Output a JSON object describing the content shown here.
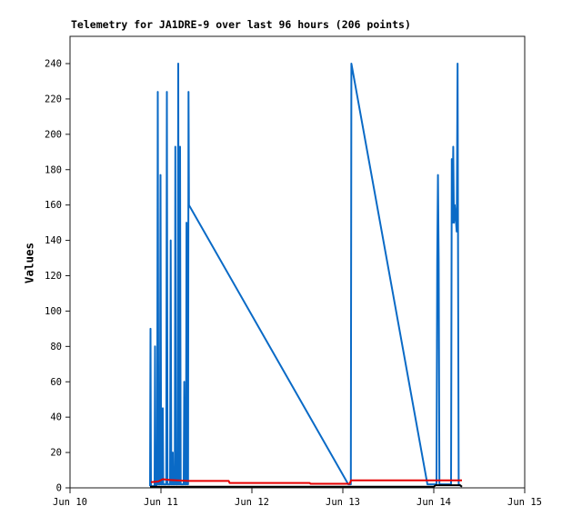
{
  "page": {
    "background": "#ffffff"
  },
  "chart_data": {
    "type": "line",
    "title": "Telemetry for JA1DRE-9 over last 96 hours (206 points)",
    "ylabel": "Values",
    "xlabel": "",
    "grid": false,
    "legend": false,
    "x_axis": {
      "unit": "days-since-Jun-10",
      "range": [
        0,
        5
      ],
      "ticks": [
        {
          "pos": 0,
          "label": "Jun 10"
        },
        {
          "pos": 1,
          "label": "Jun 11"
        },
        {
          "pos": 2,
          "label": "Jun 12"
        },
        {
          "pos": 3,
          "label": "Jun 13"
        },
        {
          "pos": 4,
          "label": "Jun 14"
        },
        {
          "pos": 5,
          "label": "Jun 15"
        }
      ]
    },
    "y_axis": {
      "min": 0,
      "max": 240,
      "step": 20,
      "top_padding_value": 255
    },
    "colors": {
      "axis": "#1a1a1a",
      "blue_series": "#0A6AC6",
      "red_series": "#E60000",
      "black_series": "#000000"
    },
    "series": [
      {
        "name": "telemetry-channel-blue",
        "color": "#0A6AC6",
        "stroke_width": 2,
        "points": [
          [
            0.88,
            1
          ],
          [
            0.885,
            90
          ],
          [
            0.89,
            1
          ],
          [
            0.93,
            1
          ],
          [
            0.935,
            80
          ],
          [
            0.94,
            1
          ],
          [
            0.958,
            2
          ],
          [
            0.965,
            224
          ],
          [
            0.972,
            2
          ],
          [
            0.988,
            2
          ],
          [
            0.995,
            177
          ],
          [
            1.002,
            2
          ],
          [
            1.015,
            2
          ],
          [
            1.02,
            45
          ],
          [
            1.025,
            2
          ],
          [
            1.058,
            2
          ],
          [
            1.065,
            224
          ],
          [
            1.072,
            2
          ],
          [
            1.1,
            2
          ],
          [
            1.107,
            140
          ],
          [
            1.114,
            2
          ],
          [
            1.125,
            2
          ],
          [
            1.13,
            20
          ],
          [
            1.135,
            2
          ],
          [
            1.152,
            2
          ],
          [
            1.158,
            193
          ],
          [
            1.164,
            2
          ],
          [
            1.183,
            2
          ],
          [
            1.19,
            240
          ],
          [
            1.197,
            2
          ],
          [
            1.203,
            2
          ],
          [
            1.21,
            193
          ],
          [
            1.217,
            2
          ],
          [
            1.25,
            2
          ],
          [
            1.256,
            60
          ],
          [
            1.262,
            2
          ],
          [
            1.275,
            2
          ],
          [
            1.281,
            150
          ],
          [
            1.287,
            2
          ],
          [
            1.298,
            2
          ],
          [
            1.303,
            224
          ],
          [
            1.308,
            160
          ],
          [
            3.06,
            2
          ],
          [
            3.088,
            2
          ],
          [
            3.094,
            240
          ],
          [
            3.93,
            2
          ],
          [
            4.03,
            2
          ],
          [
            4.038,
            128
          ],
          [
            4.046,
            177
          ],
          [
            4.054,
            128
          ],
          [
            4.062,
            2
          ],
          [
            4.19,
            2
          ],
          [
            4.198,
            186
          ],
          [
            4.206,
            150
          ],
          [
            4.214,
            193
          ],
          [
            4.222,
            150
          ],
          [
            4.23,
            160
          ],
          [
            4.245,
            150
          ],
          [
            4.252,
            145
          ],
          [
            4.262,
            240
          ],
          [
            4.268,
            112
          ],
          [
            4.274,
            2
          ],
          [
            4.3,
            1
          ]
        ]
      },
      {
        "name": "telemetry-channel-red",
        "color": "#E60000",
        "stroke_width": 2,
        "points": [
          [
            0.89,
            3.2
          ],
          [
            0.97,
            3.6
          ],
          [
            1.02,
            4.9
          ],
          [
            1.1,
            4.4
          ],
          [
            1.3,
            3.9
          ],
          [
            1.745,
            3.9
          ],
          [
            1.755,
            2.8
          ],
          [
            2.635,
            2.8
          ],
          [
            2.645,
            2.3
          ],
          [
            3.075,
            2.3
          ],
          [
            3.09,
            4.2
          ],
          [
            4.31,
            4.2
          ]
        ]
      },
      {
        "name": "telemetry-channel-black",
        "color": "#000000",
        "stroke_width": 2,
        "points": [
          [
            0.88,
            0.6
          ],
          [
            4.0,
            0.6
          ],
          [
            4.02,
            1.5
          ],
          [
            4.29,
            1.5
          ],
          [
            4.31,
            0.6
          ]
        ]
      }
    ]
  }
}
